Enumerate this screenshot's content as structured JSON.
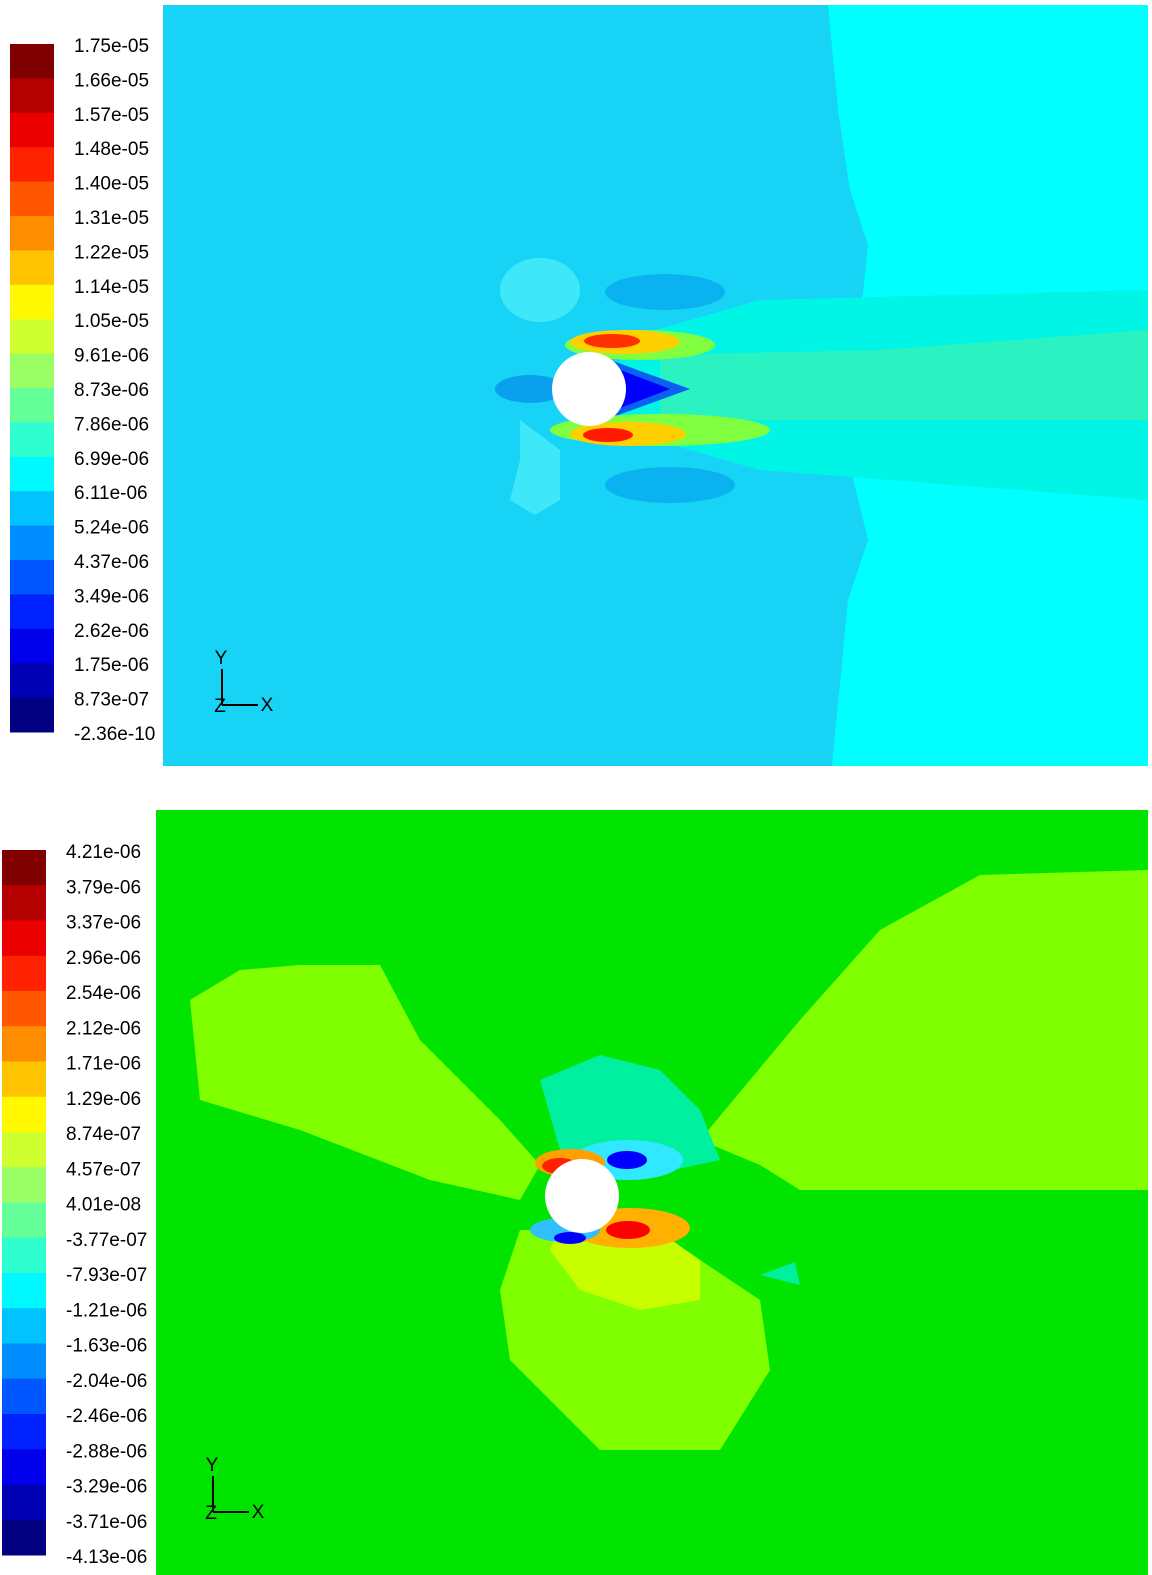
{
  "panels": [
    {
      "colorbar": {
        "labels": [
          "1.75e-05",
          "1.66e-05",
          "1.57e-05",
          "1.48e-05",
          "1.40e-05",
          "1.31e-05",
          "1.22e-05",
          "1.14e-05",
          "1.05e-05",
          "9.61e-06",
          "8.73e-06",
          "7.86e-06",
          "6.99e-06",
          "6.11e-06",
          "5.24e-06",
          "4.37e-06",
          "3.49e-06",
          "2.62e-06",
          "1.75e-06",
          "8.73e-07",
          "-2.36e-10"
        ]
      },
      "axes": {
        "y": "Y",
        "z": "Z",
        "x": "X"
      }
    },
    {
      "colorbar": {
        "labels": [
          "4.21e-06",
          "3.79e-06",
          "3.37e-06",
          "2.96e-06",
          "2.54e-06",
          "2.12e-06",
          "1.71e-06",
          "1.29e-06",
          "8.74e-07",
          "4.57e-07",
          "4.01e-08",
          "-3.77e-07",
          "-7.93e-07",
          "-1.21e-06",
          "-1.63e-06",
          "-2.04e-06",
          "-2.46e-06",
          "-2.88e-06",
          "-3.29e-06",
          "-3.71e-06",
          "-4.13e-06"
        ]
      },
      "axes": {
        "y": "Y",
        "z": "Z",
        "x": "X"
      }
    }
  ]
}
